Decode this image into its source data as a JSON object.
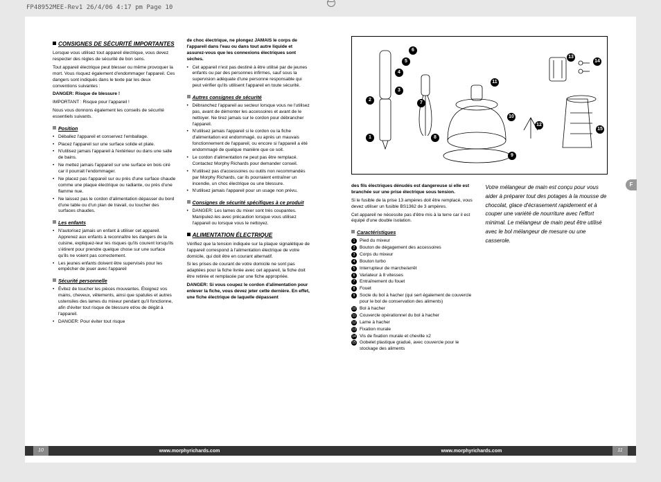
{
  "header": "FP48952MEE-Rev1  26/4/06  4:17 pm  Page 10",
  "left_page_num": "10",
  "right_page_num": "11",
  "footer_url": "www.morphyrichards.com",
  "lang_tab": "F",
  "intro": "Votre mélangeur de main est conçu pour vous aider à préparer tout des potages à la mousse de chocolat, glace d'écrasement rapidement et à couper une variété de nourriture avec l'effort minimal. Le mélangeur de main peut être utilisé avec le bol mélangeur de mesure ou une casserole.",
  "s1_title": "CONSIGNES DE SÉCURITÉ IMPORTANTES",
  "s1_p1": "Lorsque vous utilisez tout appareil électrique, vous devez respecter des règles de sécurité de bon sens.",
  "s1_p2": "Tout appareil électrique peut blesser ou même provoquer la mort. Vous risquez également d'endommager l'appareil. Ces dangers sont indiqués dans le texte par les deux conventions suivantes :",
  "s1_p3": "DANGER: Risque de blessure !",
  "s1_p4": "IMPORTANT : Risque pour l'appareil !",
  "s1_p5": "Nous vous donnons également les conseils de sécurité essentiels suivants.",
  "s2_title": "Position",
  "s2": [
    "Déballez l'appareil et conservez l'emballage.",
    "Placez l'appareil sur une surface solide et plate.",
    "N'utilisez jamais l'appareil à l'extérieur ou dans une salle de bains.",
    "Ne mettez jamais l'appareil sur une surface en bois ciré car il pourrait l'endommager.",
    "Ne placez pas l'appareil sur ou près d'une surface chaude comme une plaque électrique ou radiante, ou près d'une flamme nue.",
    "Ne laissez pas le cordon d'alimentation dépasser du bord d'une table ou d'un plan de travail, ou toucher des surfaces chaudes."
  ],
  "s3_title": "Les enfants",
  "s3": [
    "N'autorisez jamais un enfant à utiliser cet appareil. Apprenez aux enfants à reconnaître les dangers de la cuisine, expliquez-leur les risques qu'ils courent lorsqu'ils s'étirent pour prendre quelque chose sur une surface qu'ils ne voient pas correctement.",
    "Les jeunes enfants doivent être supervisés pour les empêcher de jouer avec l'appareil"
  ],
  "s4_title": "Sécurité personnelle",
  "s4_b1": "Évitez de toucher les pièces mouvantes. Éloignez vos mains, cheveux, vêtements, ainsi que spatules et autres ustensiles des lames du mixeur pendant qu'il fonctionne, afin d'éviter tout risque de blessure et/ou de dégât à l'appareil.",
  "s4_b2a": "DANGER: Pour éviter tout risque",
  "s4_b2b": "de choc électrique, ne plongez JAMAIS le corps de l'appareil dans l'eau ou dans tout autre liquide et assurez-vous que les connexions électriques sont sèches.",
  "s4_b3": "Cet appareil n'est pas destiné à être utilisé par de jeunes enfants ou par des personnes infirmes, sauf sous la supervision adéquate d'une personne responsable qui peut vérifier qu'ils utilisent l'appareil en toute sécurité.",
  "s5_title": "Autres consignes de sécurité",
  "s5": [
    "Débranchez l'appareil au secteur lorsque vous ne l'utilisez pas, avant de démonter les accessoires et avant de le nettoyer. Ne tirez jamais sur le cordon pour débrancher l'appareil.",
    "N'utilisez jamais l'appareil si le cordon ou la fiche d'alimentation est endommagé, ou après un mauvais fonctionnement de l'appareil, ou encore si l'appareil a été endommagé de quelque manière que ce soit.",
    "Le cordon d'alimentation ne peut pas être remplacé. Contactez Morphy Richards pour demander conseil.",
    "N'utilisez pas d'accessoires ou outils non recommandés par Morphy Richards, car ils pourraient entraîner un incendie, un choc électrique ou une blessure.",
    "N'utilisez jamais l'appareil pour un usage non prévu."
  ],
  "s6_title": "Consignes de sécurité spécifiques à ce produit",
  "s6_b1": "DANGER: Les lames du mixer sont très coupantes. Manipulez-les avec précaution lorsque vous utilisez l'appareil ou lorsque vous le nettoyez.",
  "s7_title": "ALIMENTATION ÉLECTRIQUE",
  "s7_p1": "Vérifiez que la tension indiquée sur la plaque signalétique de l'appareil correspond à l'alimentation électrique de votre domicile, qui doit être en courant alternatif.",
  "s7_p2": "Si les prises de courant de votre domicile ne sont pas adaptées pour la fiche livrée avec cet appareil, la fiche doit être retirée et remplacée par une fiche appropriée.",
  "s7_p3a": "DANGER: Si vous coupez le cordon d'alimentation pour enlever la fiche, vous devez jeter cette dernière. En effet, une fiche électrique de laquelle dépassent",
  "s7_p3b": "des fils électriques dénudés est dangereuse si elle est branchée sur une prise électrique sous tension.",
  "s7_p4": "Si le fusible de la prise 13 ampères doit être remplacé, vous devez utiliser un fusible BS1362 de 3 ampères.",
  "s7_p5": "Cet appareil ne nécessite pas d'être mis à la terre car il est équipé d'une double isolation.",
  "s8_title": "Caractéristiques",
  "features": [
    "Pied du mixeur",
    "Bouton de dégagement des accessoires",
    "Corps du mixeur",
    "Bouton turbo",
    "Interrupteur de marche/arrêt",
    "Variateur à 8 vitesses",
    "Entraînement du fouet",
    "Fouet",
    "Socle du bol à hacher\n(qui sert également de couvercle pour le bol de conservation des aliments)",
    "Bol à hacher",
    "Couvercle opérationnel du bol à hacher",
    "Lame à hacher",
    "Fixation murale",
    "Vis de fixation murale et cheville x2",
    "Gobelet plastique gradué, avec couvercle pour le stockage des aliments"
  ]
}
